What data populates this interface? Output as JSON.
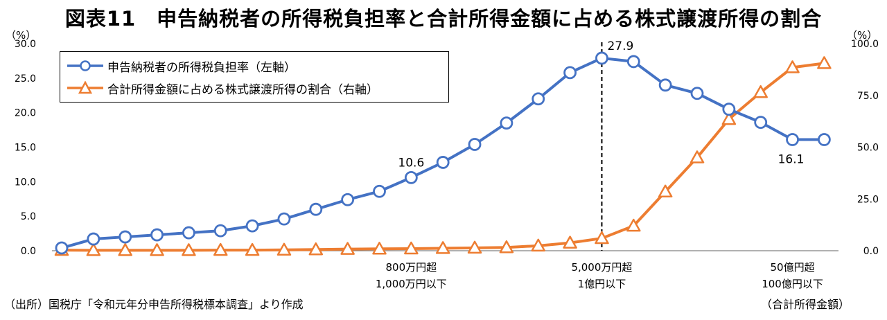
{
  "title": "図表11　申告納税者の所得税負担率と合計所得金額に占める株式譲渡所得の割合",
  "unit_left": "（%）",
  "unit_right": "（%）",
  "legend": {
    "series1": "申告納税者の所得税負担率（左軸）",
    "series2": "合計所得金額に占める株式譲渡所得の割合（右軸）"
  },
  "x_labels": [
    {
      "line1": "800万円超",
      "line2": "1,000万円以下"
    },
    {
      "line1": "5,000万円超",
      "line2": "1億円以下"
    },
    {
      "line1": "50億円超",
      "line2": "100億円以下"
    }
  ],
  "source": "（出所）国税庁「令和元年分申告所得税標本調査」より作成",
  "x_axis_title": "（合計所得金額）",
  "colors": {
    "series1": "#4472C4",
    "series2": "#ED7D31"
  },
  "chart_data": {
    "type": "line",
    "x_count": 25,
    "y_left": {
      "range": [
        0,
        30
      ],
      "ticks": [
        "0.0",
        "5.0",
        "10.0",
        "15.0",
        "20.0",
        "25.0",
        "30.0"
      ]
    },
    "y_right": {
      "range": [
        0,
        100
      ],
      "ticks": [
        "0.0",
        "25.0",
        "50.0",
        "75.0",
        "100.0"
      ]
    },
    "series": [
      {
        "name": "申告納税者の所得税負担率（左軸）",
        "axis": "left",
        "values": [
          0.4,
          1.7,
          2.0,
          2.3,
          2.6,
          2.9,
          3.6,
          4.6,
          6.0,
          7.4,
          8.6,
          10.6,
          12.8,
          15.4,
          18.5,
          22.0,
          25.8,
          27.9,
          27.4,
          24.0,
          22.8,
          20.5,
          18.6,
          16.1,
          16.1
        ]
      },
      {
        "name": "合計所得金額に占める株式譲渡所得の割合（右軸）",
        "axis": "right",
        "values": [
          0.3,
          0.2,
          0.2,
          0.2,
          0.2,
          0.3,
          0.3,
          0.4,
          0.6,
          0.8,
          0.9,
          1.0,
          1.2,
          1.4,
          1.6,
          2.4,
          3.8,
          6.0,
          12.0,
          28.5,
          45.0,
          63.5,
          76.5,
          88.5,
          90.5
        ]
      }
    ],
    "data_labels": [
      {
        "series": 0,
        "index": 11,
        "text": "10.6",
        "pos": "above"
      },
      {
        "series": 0,
        "index": 17,
        "text": "27.9",
        "pos": "above-right"
      },
      {
        "series": 0,
        "index": 23,
        "text": "16.1",
        "pos": "below"
      }
    ],
    "marker_line": {
      "index": 17,
      "style": "dashed"
    },
    "x_label_indices": [
      11,
      17,
      23
    ],
    "legend_position": "top-left",
    "grid": false
  }
}
